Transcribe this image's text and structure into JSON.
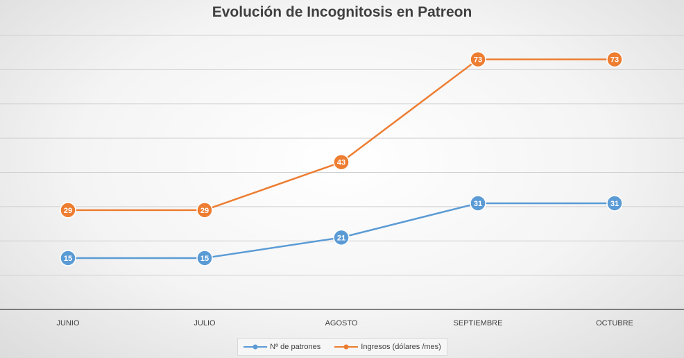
{
  "chart_data": {
    "type": "line",
    "title": "Evolución de Incognitosis en Patreon",
    "categories": [
      "JUNIO",
      "JULIO",
      "AGOSTO",
      "SEPTIEMBRE",
      "OCTUBRE"
    ],
    "series": [
      {
        "name": "Nº de patrones",
        "values": [
          15,
          15,
          21,
          31,
          31
        ],
        "color": "#5B9BD5"
      },
      {
        "name": "Ingresos (dólares /mes)",
        "values": [
          29,
          29,
          43,
          73,
          73
        ],
        "color": "#ED7D31"
      }
    ],
    "ylim": [
      0,
      80
    ],
    "grid": true,
    "data_labels": true,
    "legend_position": "bottom"
  }
}
